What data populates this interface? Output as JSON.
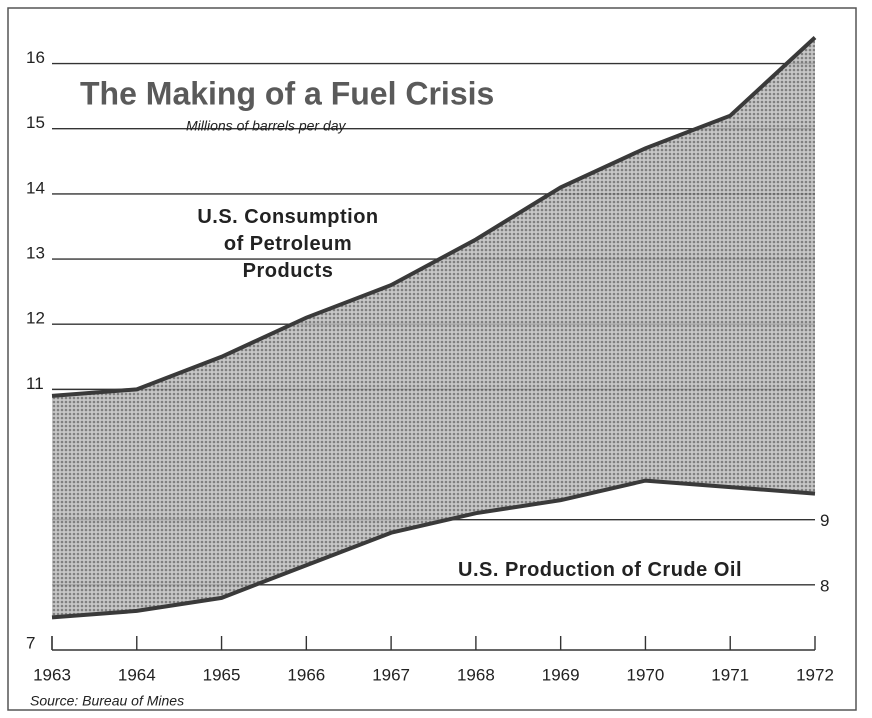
{
  "chart_data": {
    "type": "line",
    "title": "The Making of a Fuel Crisis",
    "subtitle": "Millions of barrels per day",
    "source": "Source: Bureau of Mines",
    "x": [
      1963,
      1964,
      1965,
      1966,
      1967,
      1968,
      1969,
      1970,
      1971,
      1972
    ],
    "xlim": [
      1963,
      1972
    ],
    "xticks": [
      1963,
      1964,
      1965,
      1966,
      1967,
      1968,
      1969,
      1970,
      1971,
      1972
    ],
    "ylim": [
      7,
      16.5
    ],
    "yticks": [
      7,
      11,
      12,
      13,
      14,
      15,
      16
    ],
    "y2lim": [
      7,
      16.5
    ],
    "y2ticks": [
      8,
      9
    ],
    "grid": true,
    "series": [
      {
        "name": "U.S. Consumption of Petroleum Products",
        "color": "#3a3a3a",
        "values": [
          10.9,
          11.0,
          11.5,
          12.1,
          12.6,
          13.3,
          14.1,
          14.7,
          15.2,
          16.4
        ]
      },
      {
        "name": "U.S. Production of Crude Oil",
        "color": "#3a3a3a",
        "axis": "y2",
        "values": [
          7.5,
          7.6,
          7.8,
          8.3,
          8.8,
          9.1,
          9.3,
          9.6,
          9.5,
          9.4
        ]
      }
    ]
  }
}
